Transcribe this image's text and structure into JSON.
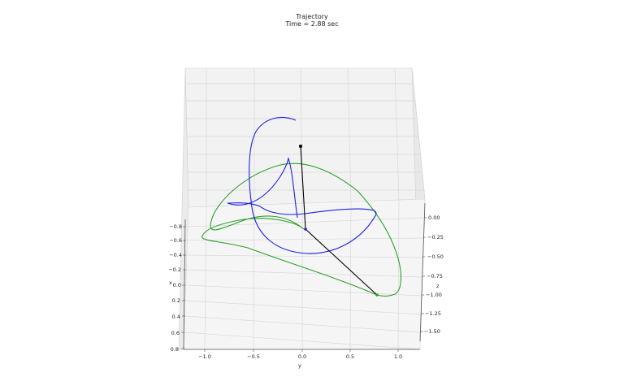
{
  "figure": {
    "title": "Trajectory",
    "subtitle": "Time = 2.88 sec"
  },
  "chart_data": {
    "type": "line",
    "projection": "3d",
    "title": "Trajectory",
    "subtitle": "Time = 2.88 sec",
    "axes": {
      "x": {
        "label": "x",
        "ticks": [
          "−0.8",
          "−0.6",
          "−0.4",
          "−0.2",
          "0.0",
          "0.2",
          "0.4",
          "0.6",
          "0.8"
        ]
      },
      "y": {
        "label": "y",
        "ticks": [
          "−1.0",
          "−0.5",
          "0.0",
          "0.5",
          "1.0"
        ]
      },
      "z": {
        "label": "z",
        "ticks": [
          "0.00",
          "−0.25",
          "−0.50",
          "−0.75",
          "−1.00",
          "−1.25",
          "−1.50"
        ]
      }
    },
    "grid": true,
    "series": [
      {
        "name": "",
        "color": "#1f1fdc",
        "kind": "trajectory-1"
      },
      {
        "name": "",
        "color": "#2ca02c",
        "kind": "trajectory-2"
      },
      {
        "name": "",
        "color": "#000000",
        "kind": "pendulum-links"
      }
    ],
    "colors": {
      "pane": "#f2f2f2",
      "grid": "#d9d9d9",
      "axis": "#555555"
    }
  }
}
